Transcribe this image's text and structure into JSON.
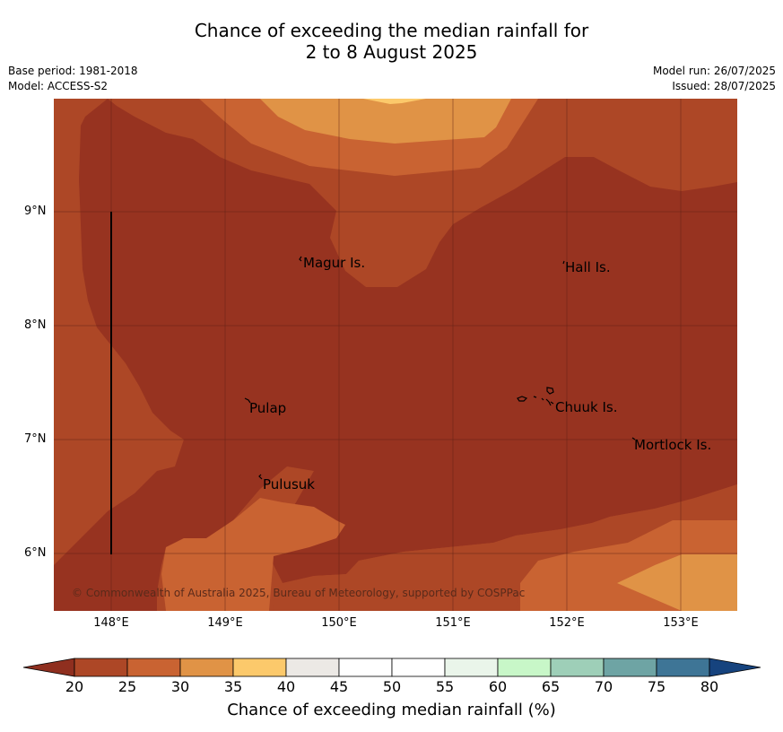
{
  "header": {
    "title_line1": "Chance of exceeding the median rainfall for",
    "title_line2": "2 to 8 August 2025",
    "base_period": "Base period: 1981-2018",
    "model": "Model: ACCESS-S2",
    "model_run": "Model run: 26/07/2025",
    "issued": "Issued: 28/07/2025"
  },
  "map": {
    "lat_labels": [
      "9°N",
      "8°N",
      "7°N",
      "6°N"
    ],
    "lon_labels": [
      "148°E",
      "149°E",
      "150°E",
      "151°E",
      "152°E",
      "153°E"
    ],
    "places": [
      {
        "name": "Magur Is."
      },
      {
        "name": "Hall Is."
      },
      {
        "name": "Pulap"
      },
      {
        "name": "Chuuk Is."
      },
      {
        "name": "Mortlock Is."
      },
      {
        "name": "Pulusuk"
      }
    ],
    "copyright": "© Commonwealth of Australia 2025, Bureau of Meteorology, supported by COSPPac"
  },
  "colorbar": {
    "title": "Chance of exceeding median rainfall (%)",
    "ticks": [
      "20",
      "25",
      "30",
      "35",
      "40",
      "45",
      "50",
      "55",
      "60",
      "65",
      "70",
      "75",
      "80"
    ],
    "colors": {
      "under": "#8f2f1f",
      "c20_25": "#ad4726",
      "c25_30": "#c96332",
      "c30_35": "#e09346",
      "c35_40": "#fcc96b",
      "c40_45": "#ece9e5",
      "c45_50": "#ffffff",
      "c50_55": "#ffffff",
      "c55_60": "#eaf5ea",
      "c60_65": "#c8f7c8",
      "c65_70": "#9ecfb8",
      "c70_75": "#6ea4a4",
      "c75_80": "#3e7596",
      "over": "#16437e",
      "deep": "#973320"
    }
  }
}
